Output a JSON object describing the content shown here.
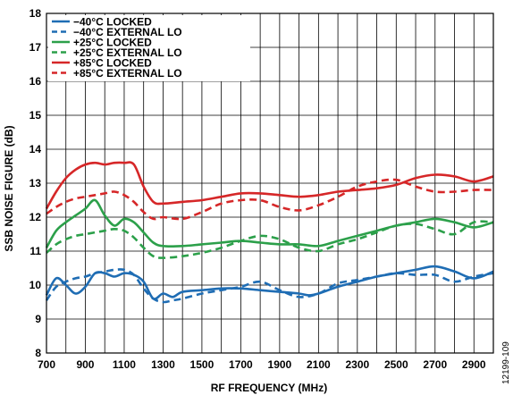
{
  "figure_id": "12199-109",
  "chart_data": {
    "type": "line",
    "title": "",
    "xlabel": "RF FREQUENCY (MHz)",
    "ylabel": "SSB NOISE FIGURE (dB)",
    "xlim": [
      700,
      3000
    ],
    "ylim": [
      8,
      18
    ],
    "xticks": [
      700,
      900,
      1100,
      1300,
      1500,
      1700,
      1900,
      2100,
      2300,
      2500,
      2700,
      2900
    ],
    "xticks_minor": [
      800,
      1000,
      1200,
      1400,
      1600,
      1800,
      2000,
      2200,
      2400,
      2600,
      2800,
      3000
    ],
    "yticks": [
      8,
      9,
      10,
      11,
      12,
      13,
      14,
      15,
      16,
      17,
      18
    ],
    "grid": true,
    "legend_position": "top-left",
    "series": [
      {
        "name": "−40°C LOCKED",
        "color": "#1f6db4",
        "dash": "solid",
        "x": [
          700,
          750,
          800,
          850,
          900,
          950,
          1000,
          1050,
          1100,
          1150,
          1200,
          1250,
          1300,
          1350,
          1400,
          1500,
          1600,
          1700,
          1800,
          1900,
          2000,
          2050,
          2100,
          2200,
          2300,
          2400,
          2500,
          2600,
          2700,
          2800,
          2900,
          3000
        ],
        "y": [
          9.7,
          10.2,
          10.0,
          9.75,
          9.95,
          10.35,
          10.35,
          10.25,
          10.35,
          10.3,
          10.1,
          9.6,
          9.75,
          9.65,
          9.8,
          9.85,
          9.9,
          9.9,
          9.85,
          9.8,
          9.75,
          9.7,
          9.75,
          9.95,
          10.1,
          10.25,
          10.35,
          10.45,
          10.55,
          10.4,
          10.2,
          10.4
        ]
      },
      {
        "name": "−40°C EXTERNAL LO",
        "color": "#1f6db4",
        "dash": "dashed",
        "x": [
          700,
          750,
          800,
          850,
          900,
          950,
          1000,
          1050,
          1100,
          1150,
          1200,
          1250,
          1300,
          1350,
          1400,
          1500,
          1600,
          1700,
          1800,
          1900,
          2000,
          2100,
          2200,
          2300,
          2400,
          2500,
          2600,
          2700,
          2800,
          2900,
          3000
        ],
        "y": [
          9.55,
          9.95,
          10.1,
          10.2,
          10.25,
          10.35,
          10.4,
          10.45,
          10.45,
          10.3,
          9.9,
          9.6,
          9.5,
          9.55,
          9.6,
          9.75,
          9.85,
          9.95,
          10.1,
          9.85,
          9.65,
          9.75,
          10.05,
          10.15,
          10.25,
          10.35,
          10.3,
          10.3,
          10.1,
          10.25,
          10.35
        ]
      },
      {
        "name": "+25°C LOCKED",
        "color": "#2ca04a",
        "dash": "solid",
        "x": [
          700,
          750,
          800,
          850,
          900,
          950,
          1000,
          1050,
          1100,
          1150,
          1200,
          1250,
          1300,
          1400,
          1500,
          1600,
          1700,
          1800,
          1900,
          2000,
          2100,
          2200,
          2300,
          2400,
          2500,
          2600,
          2700,
          2800,
          2900,
          3000
        ],
        "y": [
          11.1,
          11.6,
          11.85,
          12.05,
          12.25,
          12.5,
          12.05,
          11.75,
          11.95,
          11.85,
          11.55,
          11.25,
          11.15,
          11.15,
          11.2,
          11.25,
          11.3,
          11.25,
          11.2,
          11.2,
          11.15,
          11.3,
          11.45,
          11.6,
          11.75,
          11.85,
          11.95,
          11.85,
          11.7,
          11.85
        ]
      },
      {
        "name": "+25°C EXTERNAL LO",
        "color": "#2ca04a",
        "dash": "dashed",
        "x": [
          700,
          750,
          800,
          850,
          900,
          950,
          1000,
          1050,
          1100,
          1150,
          1200,
          1250,
          1300,
          1400,
          1500,
          1600,
          1700,
          1800,
          1900,
          2000,
          2100,
          2200,
          2300,
          2400,
          2500,
          2600,
          2700,
          2800,
          2900,
          3000
        ],
        "y": [
          10.95,
          11.2,
          11.35,
          11.45,
          11.5,
          11.55,
          11.6,
          11.65,
          11.6,
          11.4,
          11.1,
          10.85,
          10.8,
          10.85,
          10.95,
          11.1,
          11.3,
          11.45,
          11.35,
          11.1,
          11.0,
          11.2,
          11.35,
          11.55,
          11.75,
          11.8,
          11.65,
          11.5,
          11.85,
          11.85
        ]
      },
      {
        "name": "+85°C LOCKED",
        "color": "#d62728",
        "dash": "solid",
        "x": [
          700,
          750,
          800,
          850,
          900,
          950,
          1000,
          1050,
          1100,
          1150,
          1200,
          1250,
          1300,
          1400,
          1500,
          1600,
          1700,
          1800,
          1900,
          2000,
          2100,
          2200,
          2300,
          2400,
          2500,
          2600,
          2700,
          2800,
          2900,
          3000
        ],
        "y": [
          12.25,
          12.75,
          13.15,
          13.4,
          13.55,
          13.6,
          13.55,
          13.6,
          13.6,
          13.55,
          12.9,
          12.45,
          12.4,
          12.45,
          12.5,
          12.6,
          12.7,
          12.7,
          12.65,
          12.6,
          12.65,
          12.75,
          12.8,
          12.85,
          12.95,
          13.15,
          13.25,
          13.2,
          13.05,
          13.2
        ]
      },
      {
        "name": "+85°C EXTERNAL LO",
        "color": "#d62728",
        "dash": "dashed",
        "x": [
          700,
          750,
          800,
          850,
          900,
          950,
          1000,
          1050,
          1100,
          1150,
          1200,
          1250,
          1300,
          1400,
          1500,
          1600,
          1700,
          1800,
          1900,
          2000,
          2100,
          2200,
          2300,
          2400,
          2500,
          2600,
          2700,
          2800,
          2900,
          3000
        ],
        "y": [
          12.1,
          12.3,
          12.45,
          12.55,
          12.6,
          12.65,
          12.7,
          12.75,
          12.65,
          12.45,
          12.15,
          11.95,
          12.0,
          11.95,
          12.15,
          12.4,
          12.5,
          12.5,
          12.3,
          12.2,
          12.35,
          12.6,
          12.9,
          13.05,
          13.1,
          12.9,
          12.75,
          12.75,
          12.8,
          12.8
        ]
      }
    ]
  }
}
